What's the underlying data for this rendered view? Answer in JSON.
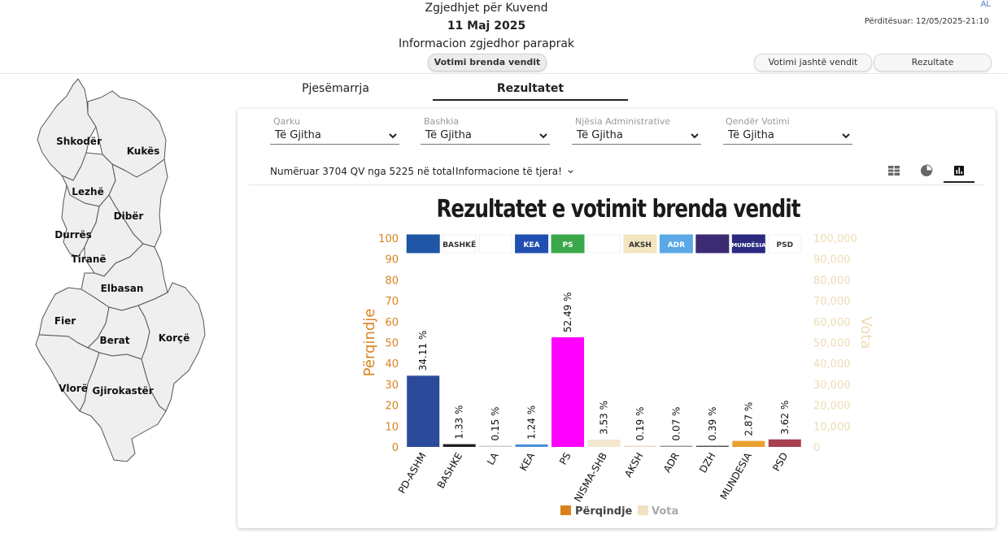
{
  "header": {
    "title": "Zgjedhjet për Kuvend",
    "date": "11 Maj 2025",
    "subtitle": "Informacion zgjedhor paraprak",
    "language": "AL",
    "updated": "Përditësuar: 12/05/2025-21:10"
  },
  "nav": {
    "inland": "Votimi brenda vendit",
    "abroad": "Votimi jashtë vendit",
    "results": "Rezultate"
  },
  "tabs": {
    "participation": "Pjesëmarrja",
    "results": "Rezultatet"
  },
  "map": {
    "regions": [
      "Shkodër",
      "Kukës",
      "Lezhë",
      "Dibër",
      "Durrës",
      "Tiranë",
      "Elbasan",
      "Fier",
      "Berat",
      "Korçë",
      "Vlorë",
      "Gjirokastër"
    ]
  },
  "filters": [
    {
      "label": "Qarku",
      "value": "Të Gjitha"
    },
    {
      "label": "Bashkia",
      "value": "Të Gjitha"
    },
    {
      "label": "Njësia Administrative",
      "value": "Të Gjitha"
    },
    {
      "label": "Qendër Votimi",
      "value": "Të Gjitha"
    }
  ],
  "info": {
    "counted": "Numëruar 3704 QV nga 5225 në total",
    "more": "Informacione të tjera!"
  },
  "view_icons": [
    "table-icon",
    "pie-chart-icon",
    "bar-chart-icon"
  ],
  "chart_data": {
    "type": "bar",
    "title": "Rezultatet e votimit brenda vendit",
    "categories": [
      "PD-ASHM",
      "BASHKE",
      "LA",
      "KEA",
      "PS",
      "NISMA-SHB",
      "AKSH",
      "ADR",
      "DZH",
      "MUNDESIA",
      "PSD"
    ],
    "series": [
      {
        "name": "Përqindje",
        "values": [
          34.11,
          1.33,
          0.15,
          1.24,
          52.49,
          3.53,
          0.19,
          0.07,
          0.39,
          2.87,
          3.62
        ]
      },
      {
        "name": "Vota",
        "values": [
          null,
          null,
          null,
          null,
          null,
          null,
          null,
          null,
          null,
          null,
          null
        ]
      }
    ],
    "data_labels": [
      "34.11 %",
      "1.33 %",
      "0.15 %",
      "1.24 %",
      "52.49 %",
      "3.53 %",
      "0.19 %",
      "0.07 %",
      "0.39 %",
      "2.87 %",
      "3.62 %"
    ],
    "bar_colors": [
      "#2b4a9a",
      "#222222",
      "#cccccc",
      "#4a90d9",
      "#ff00ff",
      "#f3e8cf",
      "#e8dcc0",
      "#999999",
      "#555555",
      "#e8a030",
      "#a84050"
    ],
    "ylabel": "Përqindje",
    "y2label": "Vota",
    "ylim": [
      0,
      100
    ],
    "y2lim": [
      0,
      100000
    ],
    "yticks": [
      "0",
      "10",
      "20",
      "30",
      "40",
      "50",
      "60",
      "70",
      "80",
      "90",
      "100"
    ],
    "y2ticks": [
      "0",
      "10,000",
      "20,000",
      "30,000",
      "40,000",
      "50,000",
      "60,000",
      "70,000",
      "80,000",
      "90,000",
      "100,000"
    ],
    "y_color": "#d9831f",
    "y2_color": "#f0e2c0",
    "legend": {
      "position": "bottom-center"
    },
    "party_logos": [
      {
        "text": "",
        "bg": "#1f56a6"
      },
      {
        "text": "BASHKË",
        "bg": "#ffffff"
      },
      {
        "text": "",
        "bg": "#ffffff"
      },
      {
        "text": "KEA",
        "bg": "#1f4fb0"
      },
      {
        "text": "PS",
        "bg": "#3aa84a"
      },
      {
        "text": "",
        "bg": "#ffffff"
      },
      {
        "text": "AKSH",
        "bg": "#f3e6c0"
      },
      {
        "text": "ADR",
        "bg": "#5aa9e6"
      },
      {
        "text": "",
        "bg": "#3a2b73"
      },
      {
        "text": "MUNDËSIA",
        "bg": "#2a2a80"
      },
      {
        "text": "PSD",
        "bg": "#ffffff"
      }
    ]
  }
}
